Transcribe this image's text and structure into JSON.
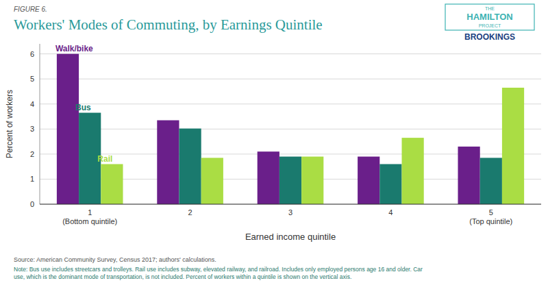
{
  "chart_data": {
    "type": "bar",
    "title": "Workers' Modes of Commuting, by Earnings Quintile",
    "xlabel": "Earned income quintile",
    "ylabel": "Percent of workers",
    "categories": [
      "1\n(Bottom quintile)",
      "2",
      "3",
      "4",
      "5\n(Top quintile)"
    ],
    "series": [
      {
        "name": "Walk/bike",
        "color": "#6a1f8a",
        "values": [
          6.0,
          3.35,
          2.1,
          1.9,
          2.3
        ]
      },
      {
        "name": "Bus",
        "color": "#1a7a6e",
        "values": [
          3.65,
          3.02,
          1.9,
          1.6,
          1.85
        ]
      },
      {
        "name": "Rail",
        "color": "#aadd44",
        "values": [
          1.6,
          1.85,
          1.9,
          2.65,
          4.65
        ]
      }
    ],
    "ylim": [
      0,
      6.4
    ],
    "yticks": [
      0,
      1,
      2,
      3,
      4,
      5,
      6
    ],
    "grid": true,
    "annotations": [
      "FIGURE 6.",
      "Source: American Community Survey, Census 2017; authors' calculations.",
      "Note: Bus use includes streetcars and trolleys. Rail use includes subway, elevated railway, and railroad. Includes only employed persons age 16 and older. Car\nuse, which is the dominant mode of transportation, is not included. Percent of workers within a quintile is shown on the vertical axis.",
      "THE",
      "HAMILTON",
      "PROJECT",
      "BROOKINGS"
    ]
  }
}
